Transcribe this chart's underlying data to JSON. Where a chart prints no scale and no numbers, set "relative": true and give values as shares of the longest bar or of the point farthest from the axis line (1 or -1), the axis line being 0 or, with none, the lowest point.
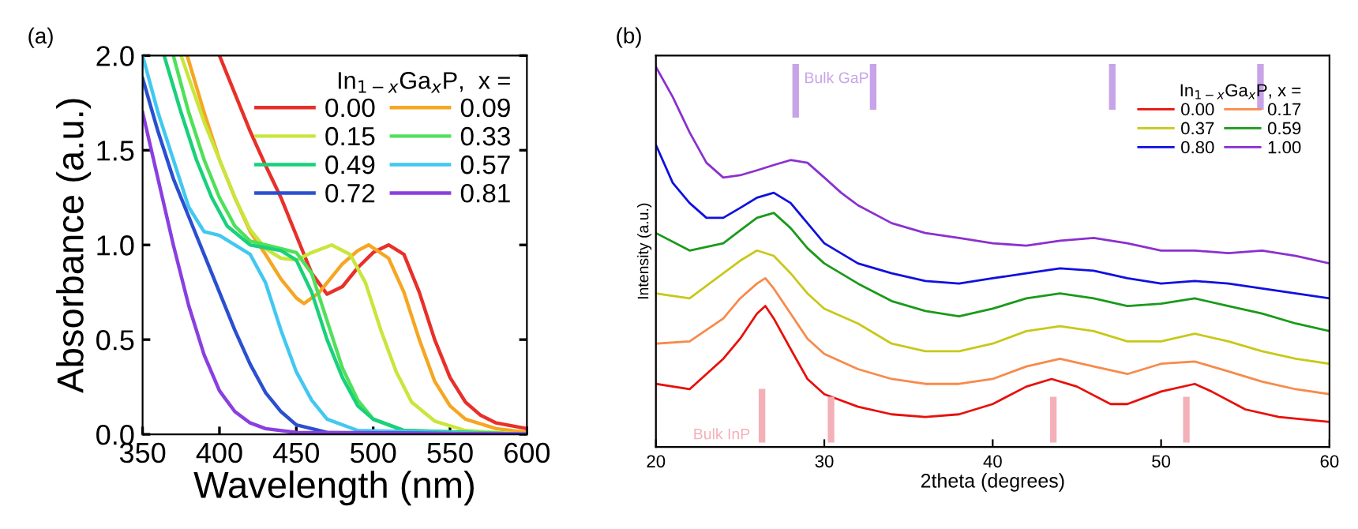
{
  "chart_data": [
    {
      "type": "line",
      "title": "(a)",
      "xlabel": "Wavelength (nm)",
      "ylabel": "Absorbance (a.u.)",
      "legend_title": "In$_{1−x}$Ga$_{x}$P,  x =",
      "legend": "top right",
      "grid": false,
      "xlim": [
        350,
        600
      ],
      "xticks": [
        350,
        400,
        450,
        500,
        550,
        600
      ],
      "ylim": [
        0,
        2
      ],
      "yticks": [
        {
          "value": 0,
          "label": "0.0"
        },
        {
          "value": 0.5,
          "label": "0.5"
        },
        {
          "value": 1,
          "label": "1.0"
        },
        {
          "value": 1.5,
          "label": "1.5"
        },
        {
          "value": 2,
          "label": "2.0"
        }
      ],
      "series": [
        {
          "name": "0.00",
          "color": "#e8302a",
          "x": [
            400,
            410,
            420,
            430,
            440,
            450,
            460,
            470,
            480,
            490,
            500,
            510,
            520,
            530,
            540,
            550,
            560,
            570,
            580,
            600
          ],
          "values": [
            2.0,
            1.8,
            1.6,
            1.42,
            1.25,
            1.05,
            0.85,
            0.74,
            0.78,
            0.88,
            0.96,
            1.0,
            0.95,
            0.75,
            0.5,
            0.3,
            0.17,
            0.1,
            0.06,
            0.03
          ]
        },
        {
          "name": "0.09",
          "color": "#f5a623",
          "x": [
            379,
            390,
            400,
            410,
            420,
            430,
            440,
            450,
            455,
            465,
            480,
            490,
            497,
            510,
            520,
            530,
            540,
            550,
            560,
            580,
            600
          ],
          "values": [
            2.0,
            1.7,
            1.45,
            1.25,
            1.07,
            0.95,
            0.82,
            0.72,
            0.69,
            0.75,
            0.9,
            0.97,
            1.0,
            0.93,
            0.75,
            0.5,
            0.28,
            0.15,
            0.08,
            0.03,
            0.01
          ]
        },
        {
          "name": "0.15",
          "color": "#c8e63c",
          "x": [
            375,
            390,
            400,
            410,
            420,
            430,
            440,
            450,
            460,
            473,
            485,
            495,
            505,
            515,
            525,
            540,
            560,
            600
          ],
          "values": [
            2.0,
            1.65,
            1.45,
            1.25,
            1.08,
            0.98,
            0.93,
            0.92,
            0.96,
            1.0,
            0.95,
            0.8,
            0.55,
            0.33,
            0.17,
            0.07,
            0.02,
            0.0
          ]
        },
        {
          "name": "0.33",
          "color": "#4fe05a",
          "x": [
            370,
            380,
            390,
            400,
            410,
            420,
            430,
            440,
            450,
            460,
            470,
            480,
            490,
            500,
            520,
            600
          ],
          "values": [
            2.0,
            1.7,
            1.45,
            1.25,
            1.1,
            1.02,
            1.0,
            0.98,
            0.96,
            0.85,
            0.6,
            0.35,
            0.18,
            0.08,
            0.02,
            0.0
          ]
        },
        {
          "name": "0.49",
          "color": "#19d17a",
          "x": [
            364,
            375,
            385,
            395,
            405,
            420,
            440,
            450,
            460,
            470,
            480,
            490,
            500,
            520,
            600
          ],
          "values": [
            2.0,
            1.7,
            1.45,
            1.25,
            1.1,
            1.0,
            0.97,
            0.92,
            0.75,
            0.5,
            0.3,
            0.15,
            0.08,
            0.02,
            0.0
          ]
        },
        {
          "name": "0.57",
          "color": "#42c8f0",
          "x": [
            350,
            360,
            370,
            380,
            390,
            400,
            410,
            420,
            430,
            440,
            450,
            460,
            470,
            490,
            600
          ],
          "values": [
            2.0,
            1.7,
            1.45,
            1.2,
            1.07,
            1.05,
            1.0,
            0.95,
            0.8,
            0.55,
            0.33,
            0.18,
            0.08,
            0.02,
            0.0
          ]
        },
        {
          "name": "0.72",
          "color": "#2a4fd0",
          "x": [
            350,
            360,
            370,
            380,
            390,
            400,
            410,
            420,
            430,
            440,
            450,
            470,
            600
          ],
          "values": [
            1.88,
            1.6,
            1.35,
            1.15,
            0.95,
            0.75,
            0.55,
            0.37,
            0.22,
            0.12,
            0.05,
            0.01,
            0.0
          ]
        },
        {
          "name": "0.81",
          "color": "#8a3fe0",
          "x": [
            350,
            360,
            370,
            380,
            390,
            400,
            410,
            420,
            430,
            450,
            600
          ],
          "values": [
            1.7,
            1.35,
            1.0,
            0.68,
            0.42,
            0.23,
            0.12,
            0.06,
            0.03,
            0.01,
            0.0
          ]
        }
      ]
    },
    {
      "type": "line",
      "title": "(b)",
      "xlabel": "2theta (degrees)",
      "ylabel": "Intensity (a.u.)",
      "legend_title": "In$_{1−x}$Ga$_{x}$P, x =",
      "legend": "top right",
      "grid": false,
      "relative": true,
      "xlim": [
        20,
        60
      ],
      "xticks": [
        20,
        30,
        40,
        50,
        60
      ],
      "ref_lines": [
        {
          "axis": "x",
          "value": 28.3,
          "label": "Bulk GaP",
          "color": "#c7a4e8"
        },
        {
          "axis": "x",
          "value": 32.9,
          "label": null,
          "color": "#c7a4e8"
        },
        {
          "axis": "x",
          "value": 47.1,
          "label": null,
          "color": "#c7a4e8"
        },
        {
          "axis": "x",
          "value": 55.9,
          "label": null,
          "color": "#c7a4e8"
        },
        {
          "axis": "x",
          "value": 26.3,
          "label": "Bulk InP",
          "color": "#f4b0b8"
        },
        {
          "axis": "x",
          "value": 30.4,
          "label": null,
          "color": "#f4b0b8"
        },
        {
          "axis": "x",
          "value": 43.6,
          "label": null,
          "color": "#f4b0b8"
        },
        {
          "axis": "x",
          "value": 51.5,
          "label": null,
          "color": "#f4b0b8"
        }
      ],
      "series": [
        {
          "name": "0.00",
          "color": "#e8100a",
          "x": [
            20,
            22,
            24,
            25,
            26,
            26.5,
            27,
            28,
            29,
            30,
            32,
            34,
            36,
            38,
            40,
            42,
            43.5,
            45,
            47,
            48,
            50,
            52,
            53,
            55,
            57,
            60
          ],
          "values": [
            0.166,
            0.152,
            0.232,
            0.285,
            0.351,
            0.371,
            0.338,
            0.258,
            0.179,
            0.139,
            0.106,
            0.086,
            0.079,
            0.086,
            0.113,
            0.159,
            0.179,
            0.159,
            0.113,
            0.113,
            0.146,
            0.166,
            0.146,
            0.099,
            0.079,
            0.066
          ]
        },
        {
          "name": "0.17",
          "color": "#f78a4a",
          "x": [
            20,
            22,
            24,
            25,
            26,
            26.5,
            27,
            28,
            29,
            30,
            32,
            34,
            36,
            38,
            40,
            42,
            44,
            46,
            48,
            50,
            52,
            54,
            56,
            58,
            60
          ],
          "values": [
            0.272,
            0.278,
            0.338,
            0.391,
            0.43,
            0.444,
            0.417,
            0.351,
            0.285,
            0.245,
            0.205,
            0.179,
            0.166,
            0.166,
            0.179,
            0.212,
            0.232,
            0.212,
            0.192,
            0.219,
            0.225,
            0.199,
            0.172,
            0.152,
            0.139
          ]
        },
        {
          "name": "0.37",
          "color": "#c8c81a",
          "x": [
            20,
            22,
            24,
            25,
            26,
            27,
            28,
            29,
            30,
            32,
            34,
            36,
            38,
            40,
            42,
            44,
            46,
            48,
            50,
            52,
            54,
            56,
            58,
            60
          ],
          "values": [
            0.404,
            0.391,
            0.457,
            0.49,
            0.517,
            0.503,
            0.457,
            0.404,
            0.364,
            0.325,
            0.272,
            0.252,
            0.252,
            0.272,
            0.305,
            0.318,
            0.305,
            0.278,
            0.278,
            0.298,
            0.278,
            0.252,
            0.232,
            0.219
          ]
        },
        {
          "name": "0.59",
          "color": "#1a9a1a",
          "x": [
            20,
            22,
            24,
            25,
            26,
            27,
            28,
            29,
            30,
            32,
            34,
            36,
            38,
            40,
            42,
            44,
            46,
            48,
            50,
            52,
            54,
            56,
            58,
            60
          ],
          "values": [
            0.563,
            0.517,
            0.536,
            0.57,
            0.603,
            0.616,
            0.576,
            0.523,
            0.483,
            0.43,
            0.384,
            0.358,
            0.344,
            0.364,
            0.391,
            0.404,
            0.391,
            0.371,
            0.377,
            0.391,
            0.371,
            0.351,
            0.325,
            0.305
          ]
        },
        {
          "name": "0.80",
          "color": "#1010e0",
          "x": [
            20,
            21,
            22,
            23,
            24,
            25,
            26,
            27,
            28,
            29,
            30,
            32,
            34,
            36,
            38,
            40,
            42,
            44,
            46,
            48,
            50,
            52,
            54,
            56,
            58,
            60
          ],
          "values": [
            0.795,
            0.695,
            0.642,
            0.603,
            0.603,
            0.629,
            0.656,
            0.669,
            0.642,
            0.589,
            0.536,
            0.483,
            0.457,
            0.437,
            0.43,
            0.444,
            0.457,
            0.47,
            0.464,
            0.444,
            0.43,
            0.437,
            0.43,
            0.417,
            0.404,
            0.391
          ]
        },
        {
          "name": "1.00",
          "color": "#8a30d0",
          "x": [
            20,
            21,
            22,
            23,
            24,
            25,
            26,
            27,
            28,
            29,
            30,
            31,
            32,
            34,
            36,
            38,
            40,
            42,
            44,
            46,
            48,
            50,
            52,
            54,
            56,
            58,
            60
          ],
          "values": [
            1.0,
            0.921,
            0.828,
            0.748,
            0.709,
            0.715,
            0.728,
            0.742,
            0.755,
            0.748,
            0.709,
            0.669,
            0.636,
            0.589,
            0.563,
            0.55,
            0.536,
            0.53,
            0.543,
            0.55,
            0.536,
            0.517,
            0.517,
            0.51,
            0.517,
            0.503,
            0.483
          ]
        }
      ]
    }
  ]
}
